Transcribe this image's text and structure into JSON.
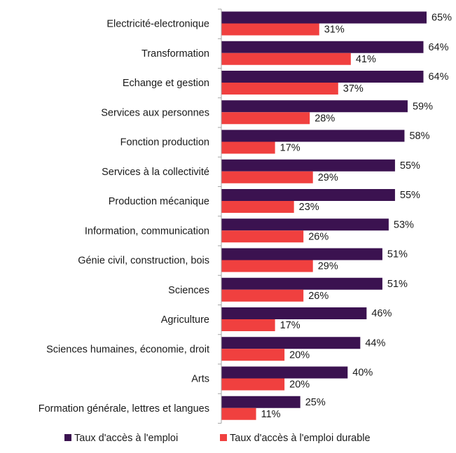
{
  "chart_data": {
    "type": "bar",
    "orientation": "horizontal",
    "categories": [
      "Electricité-electronique",
      "Transformation",
      "Echange et gestion",
      "Services aux personnes",
      "Fonction production",
      "Services à la collectivité",
      "Production mécanique",
      "Information, communication",
      "Génie civil, construction, bois",
      "Sciences",
      "Agriculture",
      "Sciences humaines, économie, droit",
      "Arts",
      "Formation générale, lettres et langues"
    ],
    "series": [
      {
        "name": "Taux d'accès à l'emploi",
        "color": "#3b1250",
        "values": [
          65,
          64,
          64,
          59,
          58,
          55,
          55,
          53,
          51,
          51,
          46,
          44,
          40,
          25
        ],
        "labels": [
          "65%",
          "64%",
          "64%",
          "59%",
          "58%",
          "55%",
          "55%",
          "53%",
          "51%",
          "51%",
          "46%",
          "44%",
          "40%",
          "25%"
        ]
      },
      {
        "name": "Taux d'accès à l'emploi durable",
        "color": "#f0403f",
        "values": [
          31,
          41,
          37,
          28,
          17,
          29,
          23,
          26,
          29,
          26,
          17,
          20,
          20,
          11
        ],
        "labels": [
          "31%",
          "41%",
          "37%",
          "28%",
          "17%",
          "29%",
          "23%",
          "26%",
          "29%",
          "26%",
          "17%",
          "20%",
          "20%",
          "11%"
        ]
      }
    ],
    "xlim": [
      0,
      65
    ],
    "grid": false,
    "legend_position": "bottom"
  }
}
